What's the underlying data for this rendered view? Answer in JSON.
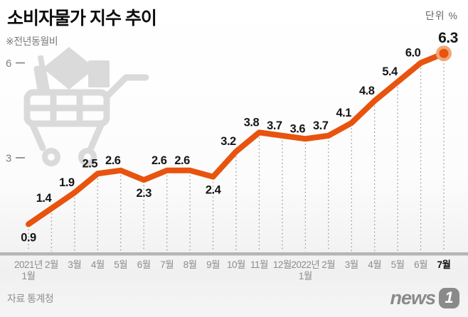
{
  "header": {
    "title": "소비자물가 지수 추이",
    "note": "※전년동월비",
    "unit_label": "단위 %"
  },
  "chart_data": {
    "type": "line",
    "x": [
      "2021년|1월",
      "2월",
      "3월",
      "4월",
      "5월",
      "6월",
      "7월",
      "8월",
      "9월",
      "10월",
      "11월",
      "12월",
      "2022년|1월",
      "2월",
      "3월",
      "4월",
      "5월",
      "6월",
      "7월"
    ],
    "values": [
      0.9,
      1.4,
      1.9,
      2.5,
      2.6,
      2.3,
      2.6,
      2.6,
      2.4,
      3.2,
      3.8,
      3.7,
      3.6,
      3.7,
      4.1,
      4.8,
      5.4,
      6.0,
      6.3
    ],
    "label_positions": [
      "below",
      "above",
      "above",
      "above",
      "above",
      "below",
      "above",
      "above",
      "below",
      "above",
      "above",
      "above",
      "above",
      "above",
      "above",
      "above",
      "above",
      "above",
      "above-big"
    ],
    "yticks": [
      3,
      6
    ],
    "ylim": [
      0,
      7
    ],
    "grid": "dotted-vertical-droplines",
    "legend": "none",
    "title": "소비자물가 지수 추이",
    "xlabel": "",
    "ylabel": "%",
    "highlight_last_point": true,
    "colors": {
      "line": "#e8530e",
      "marker_halo": "#f4a577",
      "value_label": "#161616",
      "axis_bar": "#b5b5b5",
      "dotted_line": "#999999",
      "x_label": "#8d8d8d",
      "x_label_last": "#111111",
      "y_tick": "#808080",
      "watermark": "#dadada"
    }
  },
  "footer": {
    "source": "자료 통계청",
    "logo_text": "news",
    "logo_badge": "1"
  }
}
